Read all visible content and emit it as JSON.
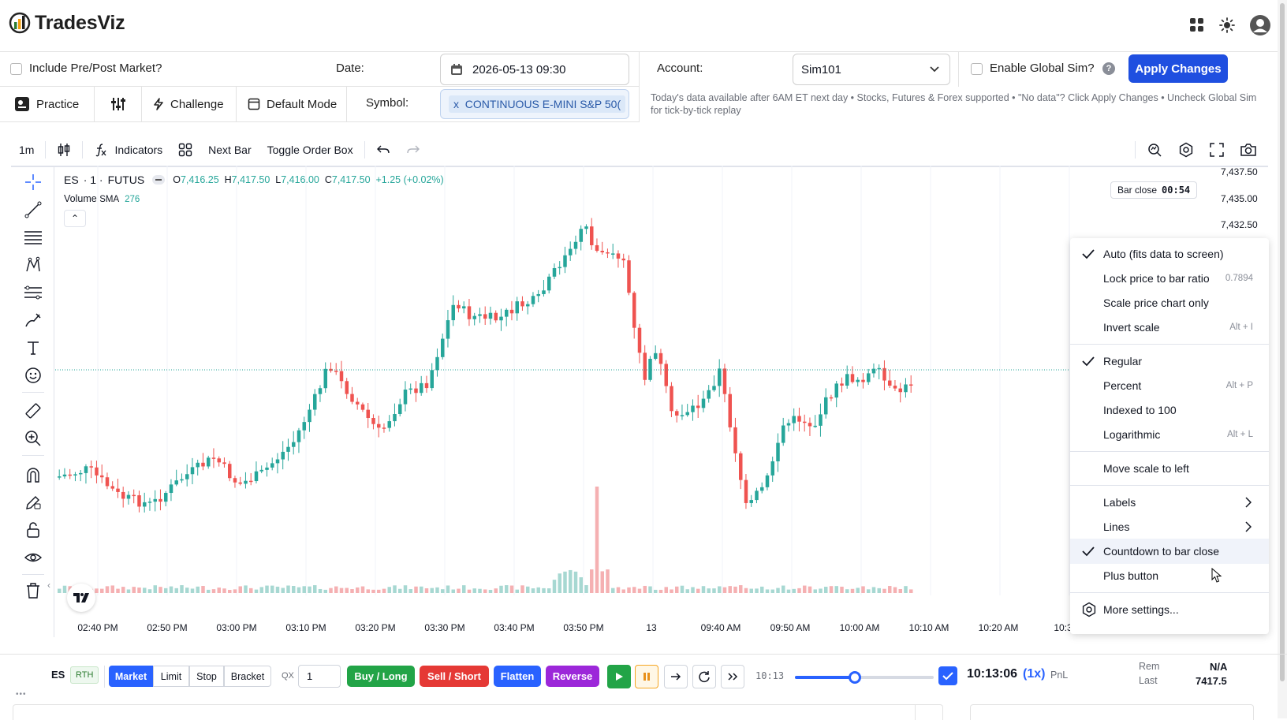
{
  "header": {
    "brand": "TradesViz"
  },
  "controls": {
    "include_prepost_label": "Include Pre/Post Market?",
    "date_label": "Date:",
    "date_value": "2026-05-13 09:30",
    "practice_label": "Practice",
    "challenge_label": "Challenge",
    "default_mode_label": "Default Mode",
    "symbol_label": "Symbol:",
    "symbol_chip_x": "x",
    "symbol_value": "CONTINUOUS E-MINI S&P 50(",
    "account_label": "Account:",
    "account_value": "Sim101",
    "global_sim_label": "Enable Global Sim?",
    "help_glyph": "?",
    "apply_label": "Apply Changes",
    "hint": "Today's data available after 6AM ET next day • Stocks, Futures & Forex supported • \"No data\"? Click Apply Changes • Uncheck Global Sim for tick-by-tick replay"
  },
  "toolbar": {
    "interval": "1m",
    "indicators": "Indicators",
    "next_bar": "Next Bar",
    "toggle_order_box": "Toggle Order Box"
  },
  "legend": {
    "symbol": "ES",
    "interval": "· 1 ·",
    "exchange": "FUTUS",
    "o_label": "O",
    "o": "7,416.25",
    "h_label": "H",
    "h": "7,417.50",
    "l_label": "L",
    "l": "7,416.00",
    "c_label": "C",
    "c": "7,417.50",
    "change": "+1.25 (+0.02%)",
    "volume_label": "Volume",
    "sma_label": "SMA",
    "sma_value": "276",
    "bar_close_label": "Bar close",
    "bar_close_time": "00:54",
    "collapse_glyph": "⌃"
  },
  "chart_data": {
    "type": "candlestick",
    "symbol": "ES",
    "price_axis_labels": [
      "7,437.50",
      "7,435.00",
      "7,432.50"
    ],
    "time_axis_labels": [
      "02:40 PM",
      "02:50 PM",
      "03:00 PM",
      "03:10 PM",
      "03:20 PM",
      "03:30 PM",
      "03:40 PM",
      "03:50 PM",
      "13",
      "09:40 AM",
      "09:50 AM",
      "10:00 AM",
      "10:10 AM",
      "10:20 AM",
      "10:3("
    ],
    "last_close": 7417.5,
    "colors": {
      "up": "#26a69a",
      "down": "#ef5350",
      "up_volume": "#a7d8d2",
      "down_volume": "#f5b0b2",
      "last_price_line": "#26a69a"
    }
  },
  "menu": {
    "items": [
      {
        "label": "Auto (fits data to screen)",
        "checked": true,
        "shortcut": ""
      },
      {
        "label": "Lock price to bar ratio",
        "checked": false,
        "shortcut": "0.7894"
      },
      {
        "label": "Scale price chart only",
        "checked": false,
        "shortcut": ""
      },
      {
        "label": "Invert scale",
        "checked": false,
        "shortcut": "Alt + I"
      },
      {
        "label": "Regular",
        "checked": true,
        "shortcut": ""
      },
      {
        "label": "Percent",
        "checked": false,
        "shortcut": "Alt + P"
      },
      {
        "label": "Indexed to 100",
        "checked": false,
        "shortcut": ""
      },
      {
        "label": "Logarithmic",
        "checked": false,
        "shortcut": "Alt + L"
      },
      {
        "label": "Move scale to left",
        "checked": false,
        "shortcut": ""
      },
      {
        "label": "Labels",
        "checked": false,
        "shortcut": ""
      },
      {
        "label": "Lines",
        "checked": false,
        "shortcut": ""
      },
      {
        "label": "Countdown to bar close",
        "checked": true,
        "shortcut": ""
      },
      {
        "label": "Plus button",
        "checked": false,
        "shortcut": ""
      },
      {
        "label": "More settings...",
        "checked": false,
        "shortcut": ""
      }
    ]
  },
  "tradebar": {
    "symbol": "ES",
    "session": "RTH",
    "market": "Market",
    "limit": "Limit",
    "stop": "Stop",
    "bracket": "Bracket",
    "qty_label": "QX",
    "qty_value": "1",
    "buy": "Buy / Long",
    "sell": "Sell / Short",
    "flatten": "Flatten",
    "reverse": "Reverse",
    "slider_time": "10:13",
    "replay_progress": 0.43,
    "clock": "10:13:06",
    "speed": "(1x)",
    "pnl_label": "PnL",
    "rem_label": "Rem",
    "rem_value": "N/A",
    "last_label": "Last",
    "last_value": "7417.5"
  },
  "misc": {
    "ellipsis": "•••"
  }
}
